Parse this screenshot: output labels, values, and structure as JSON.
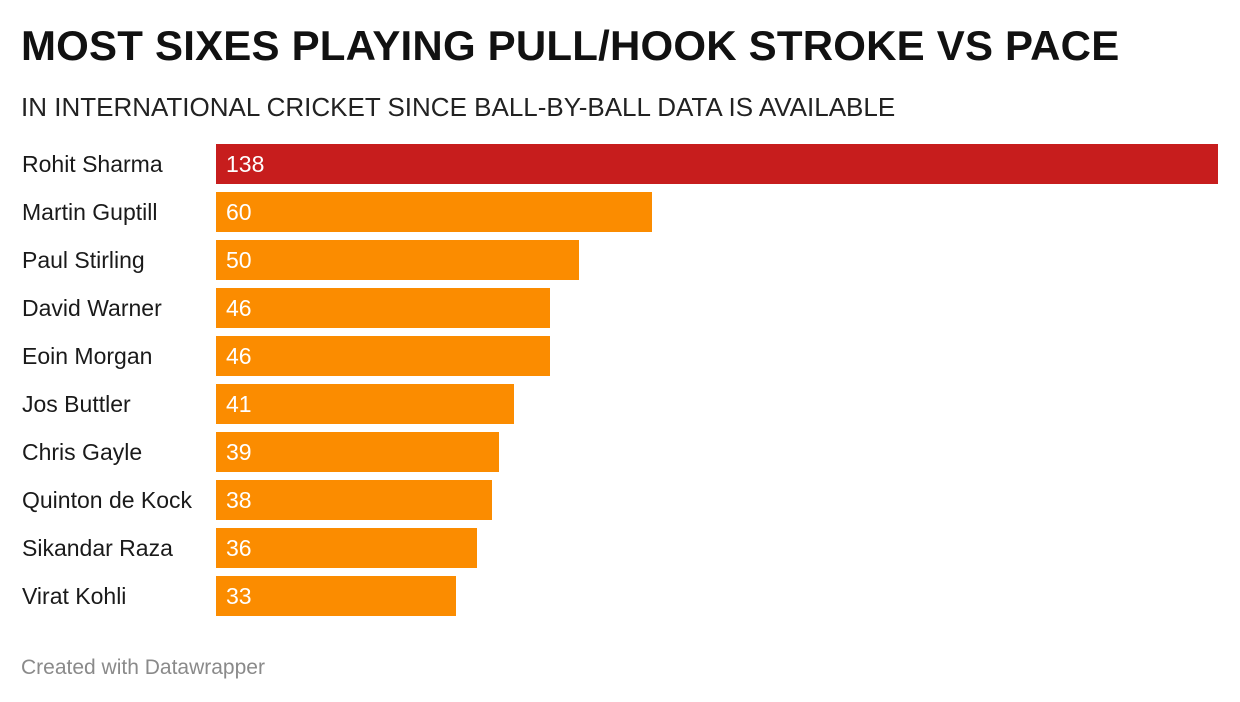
{
  "chart_data": {
    "type": "bar",
    "orientation": "horizontal",
    "title": "MOST SIXES PLAYING PULL/HOOK STROKE VS PACE",
    "subtitle": "IN INTERNATIONAL CRICKET SINCE BALL-BY-BALL DATA IS AVAILABLE",
    "categories": [
      "Rohit Sharma",
      "Martin Guptill",
      "Paul Stirling",
      "David Warner",
      "Eoin Morgan",
      "Jos Buttler",
      "Chris Gayle",
      "Quinton de Kock",
      "Sikandar Raza",
      "Virat Kohli"
    ],
    "values": [
      138,
      60,
      50,
      46,
      46,
      41,
      39,
      38,
      36,
      33
    ],
    "highlight_color": "#c71d1d",
    "bar_color": "#fb8c00",
    "label_color": "#ffffff",
    "grid": false,
    "legend": "none"
  },
  "footer": {
    "credit": "Created with Datawrapper"
  }
}
